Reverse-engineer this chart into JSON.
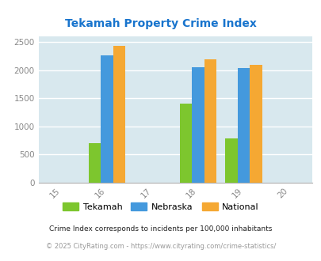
{
  "title": "Tekamah Property Crime Index",
  "title_color": "#1874CD",
  "years": [
    2016,
    2018,
    2019
  ],
  "tekamah": [
    700,
    1400,
    790
  ],
  "nebraska": [
    2260,
    2060,
    2040
  ],
  "national": [
    2440,
    2200,
    2095
  ],
  "bar_colors": {
    "tekamah": "#7DC62E",
    "nebraska": "#4499DD",
    "national": "#F5A833"
  },
  "xlim": [
    2014.5,
    2020.5
  ],
  "ylim": [
    0,
    2600
  ],
  "yticks": [
    0,
    500,
    1000,
    1500,
    2000,
    2500
  ],
  "xticks": [
    2015,
    2016,
    2017,
    2018,
    2019,
    2020
  ],
  "xticklabels": [
    "15",
    "16",
    "17",
    "18",
    "19",
    "20"
  ],
  "bg_color": "#D8E8EE",
  "grid_color": "#ffffff",
  "bar_width": 0.27,
  "legend_labels": [
    "Tekamah",
    "Nebraska",
    "National"
  ],
  "footnote1": "Crime Index corresponds to incidents per 100,000 inhabitants",
  "footnote2": "© 2025 CityRating.com - https://www.cityrating.com/crime-statistics/",
  "footnote1_color": "#222222",
  "footnote2_color": "#999999"
}
